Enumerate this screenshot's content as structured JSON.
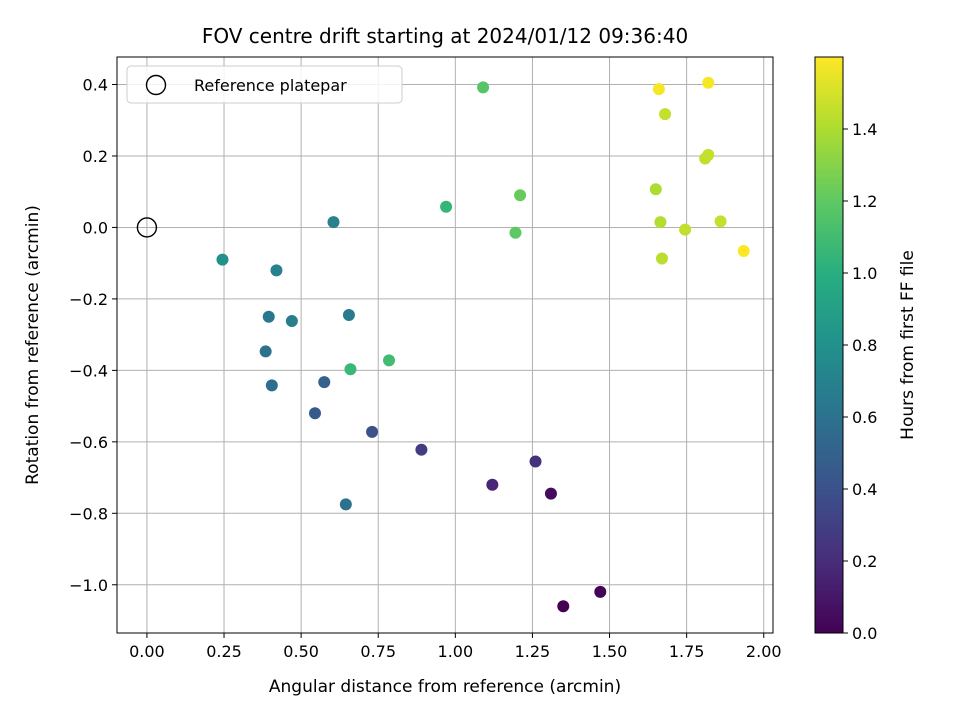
{
  "chart_data": {
    "type": "scatter",
    "title": "FOV centre drift starting at 2024/01/12 09:36:40",
    "xlabel": "Angular distance from reference (arcmin)",
    "ylabel": "Rotation from reference (arcmin)",
    "xlim": [
      -0.097,
      2.03
    ],
    "ylim": [
      -1.135,
      0.477
    ],
    "xticks": [
      "0.00",
      "0.25",
      "0.50",
      "0.75",
      "1.00",
      "1.25",
      "1.50",
      "1.75",
      "2.00"
    ],
    "yticks": [
      "−1.0",
      "−0.8",
      "−0.6",
      "−0.4",
      "−0.2",
      "0.0",
      "0.2",
      "0.4"
    ],
    "grid": true,
    "legend": {
      "placement": "top-left",
      "entries": [
        {
          "label": "Reference platepar",
          "marker": "open-circle"
        }
      ]
    },
    "colormap": "viridis",
    "colorbar": {
      "label": "Hours from first FF file",
      "range": [
        0,
        1.6
      ],
      "ticks": [
        "0.0",
        "0.2",
        "0.4",
        "0.6",
        "0.8",
        "1.0",
        "1.2",
        "1.4"
      ]
    },
    "reference_point": {
      "x": 0.0,
      "y": 0.0
    },
    "points": [
      {
        "x": 1.35,
        "y": -1.06,
        "t": 0.0
      },
      {
        "x": 1.47,
        "y": -1.02,
        "t": 0.02
      },
      {
        "x": 1.31,
        "y": -0.745,
        "t": 0.05
      },
      {
        "x": 1.12,
        "y": -0.72,
        "t": 0.17
      },
      {
        "x": 1.26,
        "y": -0.655,
        "t": 0.22
      },
      {
        "x": 0.89,
        "y": -0.622,
        "t": 0.28
      },
      {
        "x": 0.73,
        "y": -0.572,
        "t": 0.4
      },
      {
        "x": 0.545,
        "y": -0.52,
        "t": 0.45
      },
      {
        "x": 0.575,
        "y": -0.433,
        "t": 0.5
      },
      {
        "x": 0.405,
        "y": -0.442,
        "t": 0.57
      },
      {
        "x": 0.385,
        "y": -0.347,
        "t": 0.6
      },
      {
        "x": 0.645,
        "y": -0.775,
        "t": 0.6
      },
      {
        "x": 0.395,
        "y": -0.25,
        "t": 0.63
      },
      {
        "x": 0.655,
        "y": -0.245,
        "t": 0.66
      },
      {
        "x": 0.47,
        "y": -0.262,
        "t": 0.68
      },
      {
        "x": 0.42,
        "y": -0.12,
        "t": 0.7
      },
      {
        "x": 0.605,
        "y": 0.015,
        "t": 0.7
      },
      {
        "x": 0.245,
        "y": -0.09,
        "t": 0.8
      },
      {
        "x": 0.97,
        "y": 0.058,
        "t": 1.05
      },
      {
        "x": 0.66,
        "y": -0.397,
        "t": 1.07
      },
      {
        "x": 0.785,
        "y": -0.372,
        "t": 1.1
      },
      {
        "x": 1.09,
        "y": 0.392,
        "t": 1.17
      },
      {
        "x": 1.195,
        "y": -0.015,
        "t": 1.2
      },
      {
        "x": 1.21,
        "y": 0.09,
        "t": 1.22
      },
      {
        "x": 1.65,
        "y": 0.107,
        "t": 1.4
      },
      {
        "x": 1.665,
        "y": 0.015,
        "t": 1.42
      },
      {
        "x": 1.67,
        "y": -0.087,
        "t": 1.43
      },
      {
        "x": 1.745,
        "y": -0.006,
        "t": 1.45
      },
      {
        "x": 1.81,
        "y": 0.193,
        "t": 1.45
      },
      {
        "x": 1.82,
        "y": 0.203,
        "t": 1.46
      },
      {
        "x": 1.86,
        "y": 0.017,
        "t": 1.46
      },
      {
        "x": 1.68,
        "y": 0.317,
        "t": 1.46
      },
      {
        "x": 1.66,
        "y": 0.387,
        "t": 1.58
      },
      {
        "x": 1.82,
        "y": 0.405,
        "t": 1.58
      },
      {
        "x": 1.935,
        "y": -0.066,
        "t": 1.6
      }
    ]
  }
}
